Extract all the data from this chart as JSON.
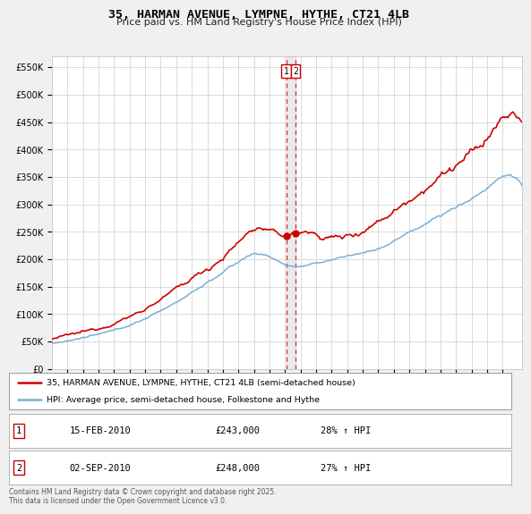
{
  "title": "35, HARMAN AVENUE, LYMPNE, HYTHE, CT21 4LB",
  "subtitle": "Price paid vs. HM Land Registry's House Price Index (HPI)",
  "ylim": [
    0,
    570000
  ],
  "yticks": [
    0,
    50000,
    100000,
    150000,
    200000,
    250000,
    300000,
    350000,
    400000,
    450000,
    500000,
    550000
  ],
  "line1_color": "#cc0000",
  "line2_color": "#7bafd4",
  "transaction1_price": 243000,
  "transaction2_price": 248000,
  "transaction1_label": "15-FEB-2010",
  "transaction2_label": "02-SEP-2010",
  "transaction1_hpi": "28% ↑ HPI",
  "transaction2_hpi": "27% ↑ HPI",
  "legend1_text": "35, HARMAN AVENUE, LYMPNE, HYTHE, CT21 4LB (semi-detached house)",
  "legend2_text": "HPI: Average price, semi-detached house, Folkestone and Hythe",
  "footer": "Contains HM Land Registry data © Crown copyright and database right 2025.\nThis data is licensed under the Open Government Licence v3.0.",
  "bg_color": "#f0f0f0",
  "plot_bg_color": "#ffffff",
  "grid_color": "#cccccc"
}
